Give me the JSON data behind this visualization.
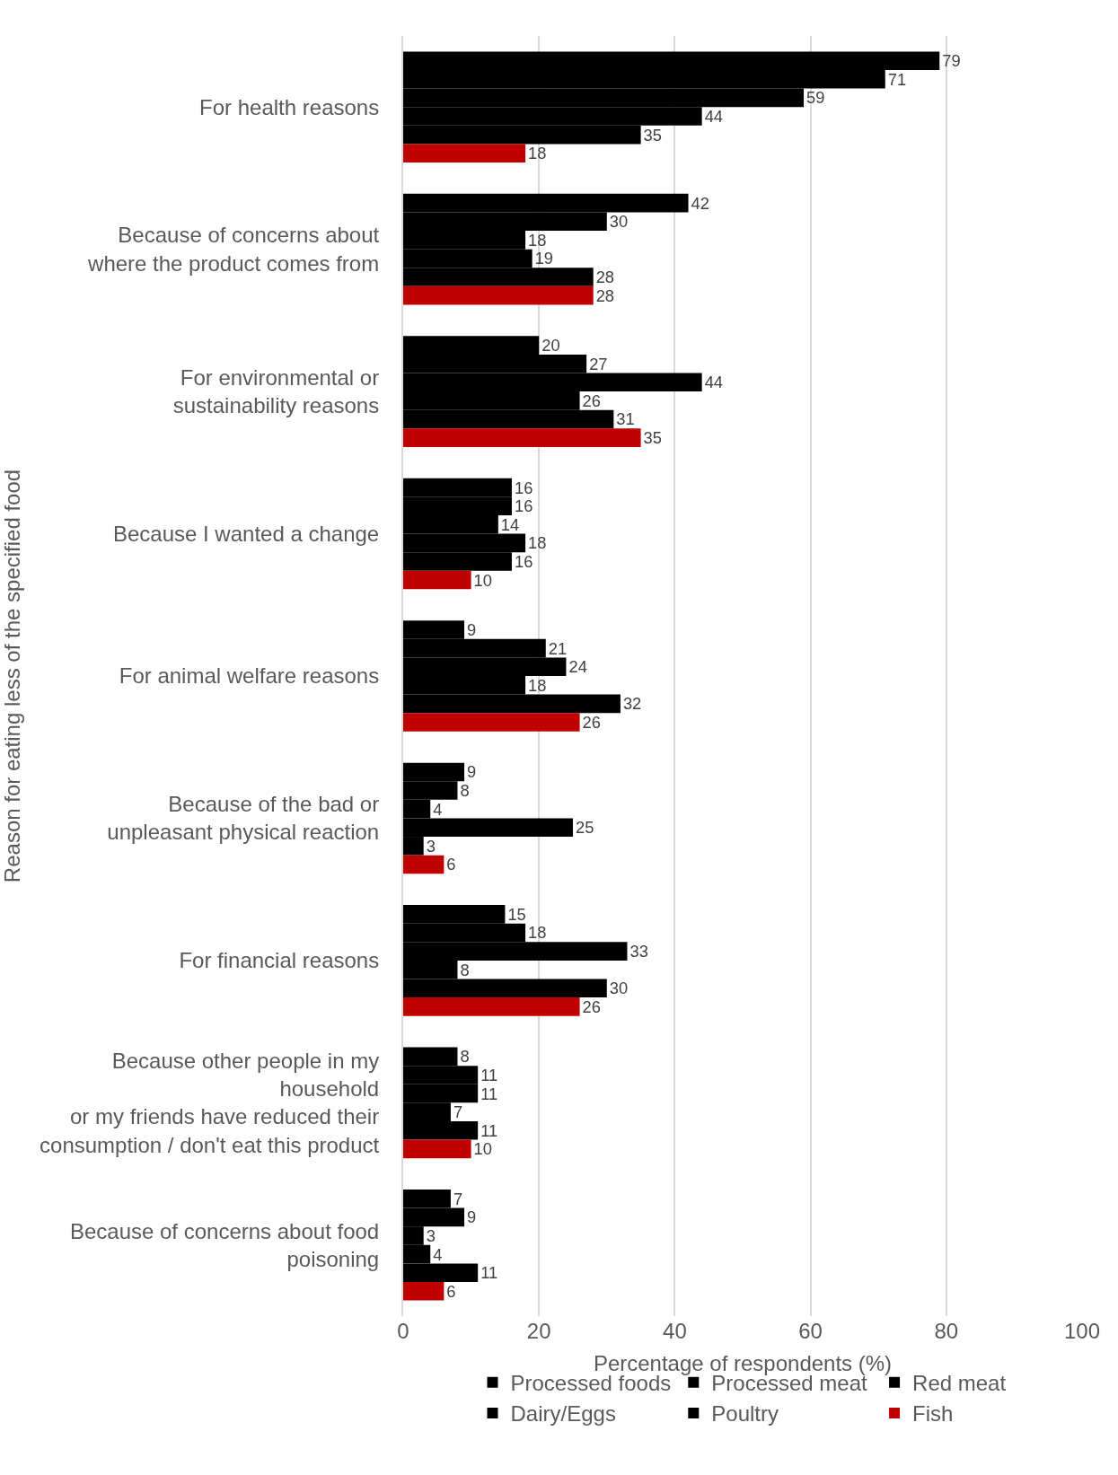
{
  "chart_data": {
    "type": "bar",
    "orientation": "horizontal",
    "xlabel": "Percentage of respondents (%)",
    "ylabel": "Reason for eating less of the specified food",
    "categories": [
      "For health reasons",
      "Because of concerns about\nwhere the product comes from",
      "For environmental or\nsustainability reasons",
      "Because I wanted a change",
      "For animal welfare reasons",
      "Because of the bad or\nunpleasant physical reaction",
      "For financial reasons",
      "Because other people in my\nhousehold\nor my friends have reduced their\nconsumption / don't eat this product",
      "Because of concerns about food\npoisoning"
    ],
    "series": [
      {
        "name": "Processed foods",
        "color": "#000000",
        "values": [
          79,
          42,
          20,
          16,
          9,
          9,
          15,
          8,
          7
        ]
      },
      {
        "name": "Processed meat",
        "color": "#000000",
        "values": [
          71,
          30,
          27,
          16,
          21,
          8,
          18,
          11,
          9
        ]
      },
      {
        "name": "Red meat",
        "color": "#000000",
        "values": [
          59,
          18,
          44,
          14,
          24,
          4,
          33,
          11,
          3
        ]
      },
      {
        "name": "Dairy/Eggs",
        "color": "#000000",
        "values": [
          44,
          19,
          26,
          18,
          18,
          25,
          8,
          7,
          4
        ]
      },
      {
        "name": "Poultry",
        "color": "#000000",
        "values": [
          35,
          28,
          31,
          16,
          32,
          3,
          30,
          11,
          11
        ]
      },
      {
        "name": "Fish",
        "color": "#c00000",
        "values": [
          18,
          28,
          35,
          10,
          26,
          6,
          26,
          10,
          6
        ]
      }
    ],
    "xlim": [
      0,
      100
    ],
    "xticks": [
      0,
      20,
      40,
      60,
      80,
      100
    ],
    "grid": "x",
    "legend": "bottom",
    "data_labels": true
  }
}
